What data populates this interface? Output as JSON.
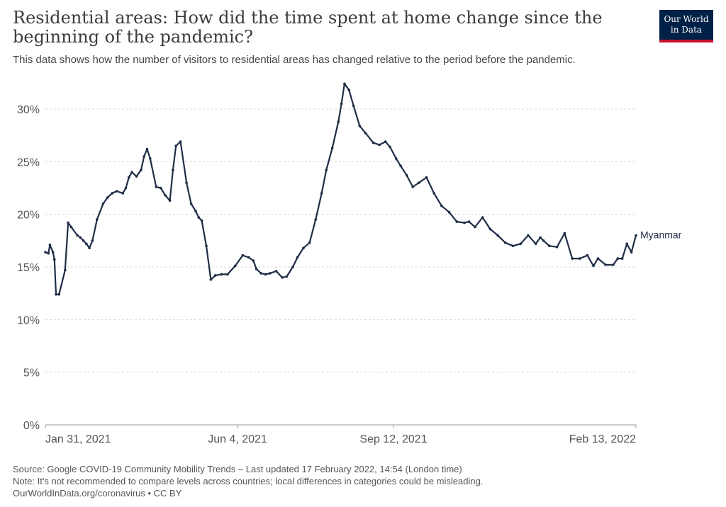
{
  "header": {
    "title": "Residential areas: How did the time spent at home change since the beginning of the pandemic?",
    "subtitle": "This data shows how the number of visitors to residential areas has changed relative to the period before the pandemic.",
    "logo_line1": "Our World",
    "logo_line2": "in Data"
  },
  "footer": {
    "source": "Source: Google COVID-19 Community Mobility Trends – Last updated 17 February 2022, 14:54 (London time)",
    "note": "Note: It's not recommended to compare levels across countries; local differences in categories could be misleading.",
    "credit": "OurWorldInData.org/coronavirus • CC BY"
  },
  "colors": {
    "line": "#1f2d45",
    "grid": "#d6d6d6",
    "axis_text": "#555555",
    "logo_bg": "#002147",
    "logo_accent": "#c8102e"
  },
  "chart_data": {
    "type": "line",
    "title": "Residential areas: How did the time spent at home change since the beginning of the pandemic?",
    "x_ticks": [
      "Jan 31, 2021",
      "Jun 4, 2021",
      "Sep 12, 2021",
      "Feb 13, 2022"
    ],
    "y_ticks": [
      "0%",
      "5%",
      "10%",
      "15%",
      "20%",
      "25%",
      "30%"
    ],
    "ylim": [
      0,
      30
    ],
    "xlim": [
      "2021-01-20",
      "2022-02-13"
    ],
    "grid": true,
    "series": [
      {
        "name": "Myanmar",
        "x": [
          "2021-01-20",
          "2021-01-22",
          "2021-01-23",
          "2021-01-25",
          "2021-01-26",
          "2021-01-27",
          "2021-01-29",
          "2021-02-02",
          "2021-02-04",
          "2021-02-06",
          "2021-02-10",
          "2021-02-12",
          "2021-02-14",
          "2021-02-16",
          "2021-02-18",
          "2021-02-20",
          "2021-02-23",
          "2021-02-27",
          "2021-03-02",
          "2021-03-05",
          "2021-03-08",
          "2021-03-12",
          "2021-03-14",
          "2021-03-16",
          "2021-03-18",
          "2021-03-21",
          "2021-03-24",
          "2021-03-26",
          "2021-03-28",
          "2021-03-30",
          "2021-04-03",
          "2021-04-06",
          "2021-04-09",
          "2021-04-12",
          "2021-04-14",
          "2021-04-16",
          "2021-04-19",
          "2021-04-23",
          "2021-04-26",
          "2021-04-29",
          "2021-05-01",
          "2021-05-03",
          "2021-05-06",
          "2021-05-09",
          "2021-05-12",
          "2021-05-16",
          "2021-05-20",
          "2021-05-25",
          "2021-05-30",
          "2021-06-03",
          "2021-06-06",
          "2021-06-08",
          "2021-06-11",
          "2021-06-14",
          "2021-06-17",
          "2021-06-21",
          "2021-06-25",
          "2021-06-28",
          "2021-07-02",
          "2021-07-05",
          "2021-07-09",
          "2021-07-13",
          "2021-07-17",
          "2021-07-21",
          "2021-07-24",
          "2021-07-28",
          "2021-08-01",
          "2021-08-03",
          "2021-08-05",
          "2021-08-08",
          "2021-08-11",
          "2021-08-15",
          "2021-08-19",
          "2021-08-24",
          "2021-08-28",
          "2021-09-01",
          "2021-09-04",
          "2021-09-08",
          "2021-09-11",
          "2021-09-15",
          "2021-09-19",
          "2021-09-23",
          "2021-09-28",
          "2021-10-03",
          "2021-10-08",
          "2021-10-13",
          "2021-10-18",
          "2021-10-23",
          "2021-10-26",
          "2021-10-30",
          "2021-11-04",
          "2021-11-09",
          "2021-11-14",
          "2021-11-19",
          "2021-11-24",
          "2021-11-29",
          "2021-12-04",
          "2021-12-09",
          "2021-12-12",
          "2021-12-14",
          "2021-12-18",
          "2021-12-23",
          "2021-12-28",
          "2022-01-02",
          "2022-01-07",
          "2022-01-12",
          "2022-01-16",
          "2022-01-19",
          "2022-01-24",
          "2022-01-29",
          "2022-02-01",
          "2022-02-04",
          "2022-02-07",
          "2022-02-10",
          "2022-02-13"
        ],
        "y": [
          16.4,
          16.3,
          17.1,
          16.4,
          15.7,
          12.4,
          12.4,
          14.7,
          19.2,
          18.8,
          18.0,
          17.8,
          17.5,
          17.2,
          16.8,
          17.5,
          19.5,
          21.0,
          21.6,
          22.0,
          22.2,
          22.0,
          22.5,
          23.5,
          24.0,
          23.6,
          24.2,
          25.5,
          26.2,
          25.3,
          22.6,
          22.5,
          21.8,
          21.3,
          24.2,
          26.5,
          26.9,
          23.0,
          21.0,
          20.3,
          19.7,
          19.4,
          17.0,
          13.8,
          14.2,
          14.3,
          14.3,
          15.1,
          16.1,
          15.9,
          15.6,
          14.8,
          14.4,
          14.3,
          14.4,
          14.6,
          14.0,
          14.1,
          15.0,
          15.9,
          16.8,
          17.3,
          19.5,
          22.0,
          24.2,
          26.3,
          28.8,
          30.5,
          32.4,
          31.8,
          30.3,
          28.4,
          27.7,
          26.8,
          26.6,
          26.9,
          26.4,
          25.3,
          24.6,
          23.7,
          22.6,
          23.0,
          23.5,
          22.0,
          20.8,
          20.2,
          19.3,
          19.2,
          19.3,
          18.8,
          19.7,
          18.6,
          18.0,
          17.3,
          17.0,
          17.2,
          18.0,
          17.2,
          17.8,
          17.5,
          17.0,
          16.9,
          18.2,
          15.8,
          15.8,
          16.1,
          15.1,
          15.8,
          15.2,
          15.2,
          15.8,
          15.8,
          17.2,
          16.4,
          18.0
        ]
      }
    ]
  }
}
